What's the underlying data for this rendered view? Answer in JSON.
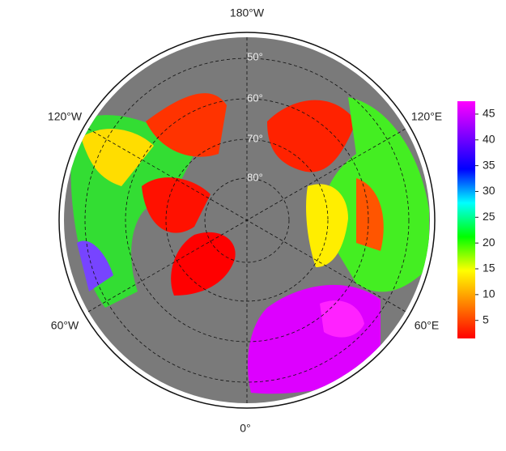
{
  "map": {
    "longitude_labels": [
      "180°W",
      "120°E",
      "60°E",
      "0°",
      "60°W",
      "120°W"
    ],
    "latitude_labels": [
      "50°",
      "60°",
      "70°",
      "80°"
    ]
  },
  "colorbar": {
    "lim": [
      1.5,
      47.5
    ],
    "ticks": [
      5,
      10,
      15,
      20,
      25,
      30,
      35,
      40,
      45
    ],
    "colors": [
      "#ff0000",
      "#ff8000",
      "#ffff00",
      "#00ff00",
      "#00ffff",
      "#0000ff",
      "#8000ff",
      "#ff00ff"
    ]
  }
}
